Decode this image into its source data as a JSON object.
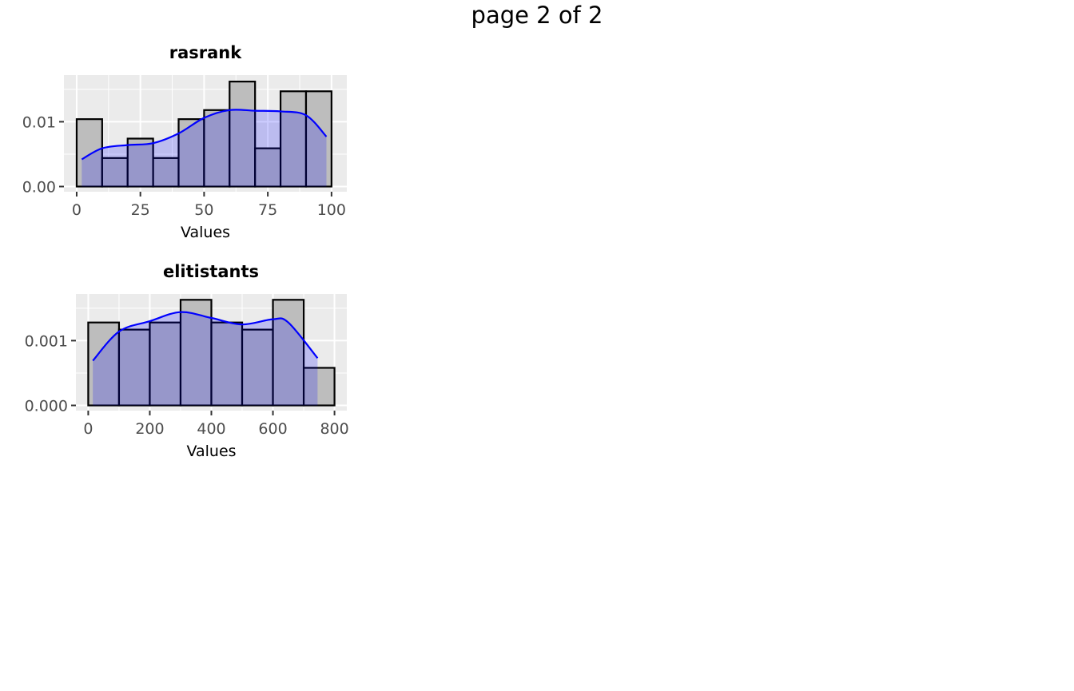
{
  "page": {
    "title": "page 2 of 2"
  },
  "chart_data": [
    {
      "type": "bar",
      "title": "rasrank",
      "xlabel": "Values",
      "ylabel": "",
      "xlim": [
        -5,
        106
      ],
      "ylim": [
        -0.0008,
        0.0172
      ],
      "x_ticks": [
        "0",
        "25",
        "50",
        "75",
        "100"
      ],
      "y_ticks": [
        "0.00",
        "0.01"
      ],
      "grid": true,
      "histogram": {
        "bin_edges": [
          0,
          10,
          20,
          30,
          40,
          50,
          60,
          70,
          80,
          90,
          100
        ],
        "density": [
          0.0104,
          0.0044,
          0.0074,
          0.0044,
          0.0104,
          0.0118,
          0.0162,
          0.0059,
          0.0147,
          0.0147
        ],
        "fill": "#bdbdbd",
        "outline": "#000000"
      },
      "density_curve": {
        "x": [
          2,
          10,
          20,
          30,
          40,
          50,
          60,
          70,
          80,
          90,
          98
        ],
        "y": [
          0.0042,
          0.0059,
          0.0064,
          0.0067,
          0.0082,
          0.0106,
          0.0118,
          0.0117,
          0.0116,
          0.011,
          0.0077
        ],
        "line_color": "#0000ff",
        "fill_color": "#0000ff",
        "fill_alpha": 0.2
      }
    },
    {
      "type": "bar",
      "title": "elitistants",
      "xlabel": "Values",
      "ylabel": "",
      "xlim": [
        -40,
        840
      ],
      "ylim": [
        -8e-05,
        0.00172
      ],
      "x_ticks": [
        "0",
        "200",
        "400",
        "600",
        "800"
      ],
      "y_ticks": [
        "0.000",
        "0.001"
      ],
      "grid": true,
      "histogram": {
        "bin_edges": [
          0,
          100,
          200,
          300,
          400,
          500,
          600,
          700,
          800
        ],
        "density": [
          0.00128,
          0.00117,
          0.00128,
          0.00163,
          0.00128,
          0.00117,
          0.00163,
          0.00058
        ],
        "fill": "#bdbdbd",
        "outline": "#000000"
      },
      "density_curve": {
        "x": [
          15,
          100,
          200,
          300,
          400,
          500,
          600,
          650,
          745
        ],
        "y": [
          0.00069,
          0.00114,
          0.0013,
          0.00144,
          0.00135,
          0.00125,
          0.00133,
          0.00128,
          0.00073
        ],
        "line_color": "#0000ff",
        "fill_color": "#0000ff",
        "fill_alpha": 0.2
      }
    }
  ]
}
